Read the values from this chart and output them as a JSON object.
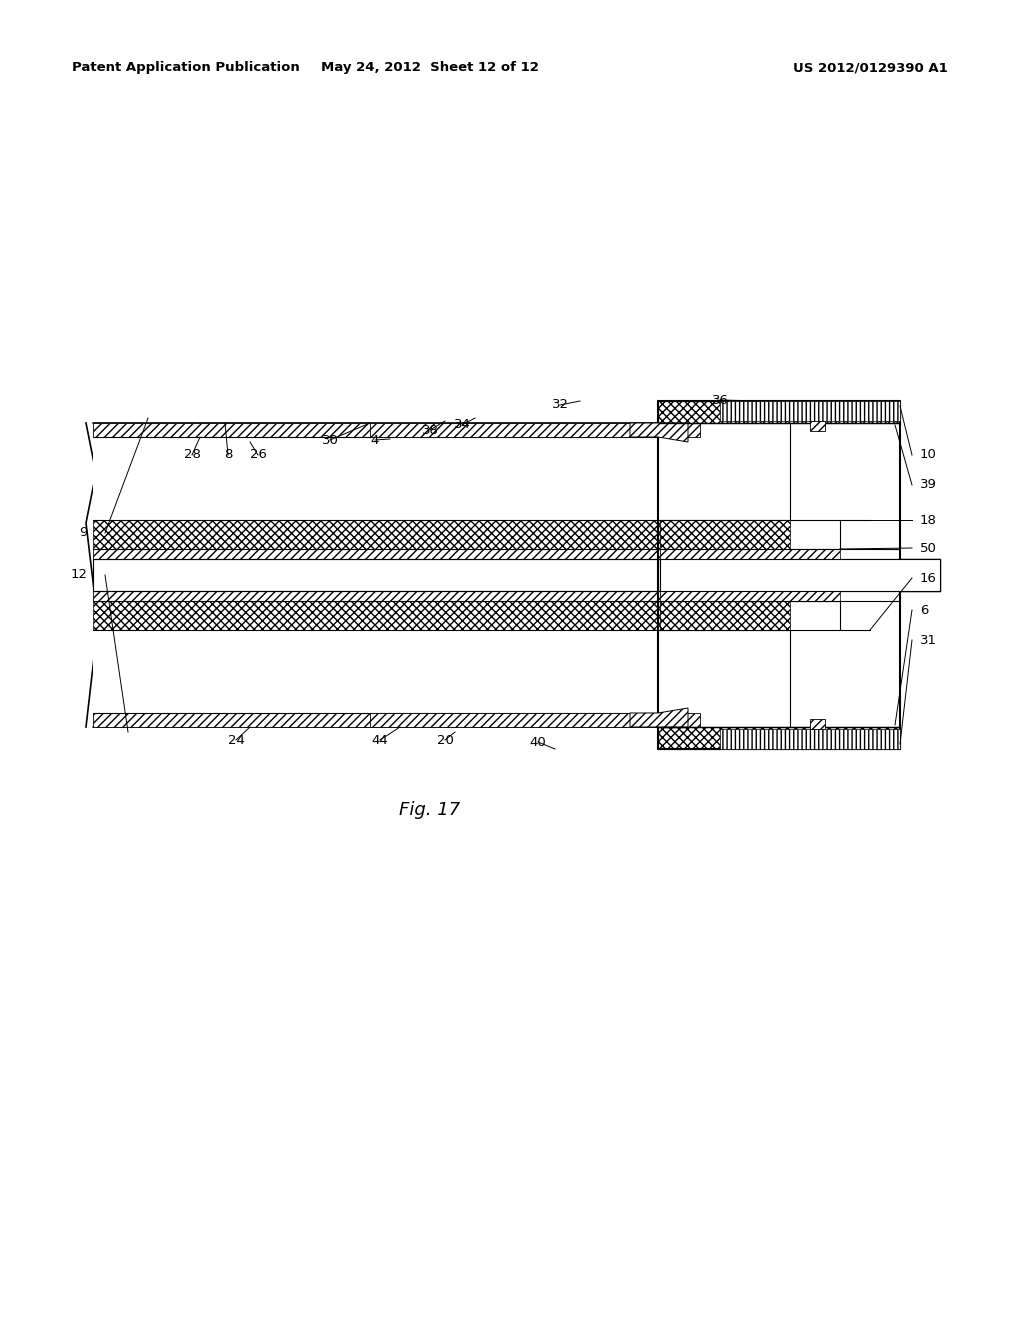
{
  "title": "Fig. 17",
  "header_left": "Patent Application Publication",
  "header_center": "May 24, 2012  Sheet 12 of 12",
  "header_right": "US 2012/0129390 A1",
  "bg_color": "#ffffff",
  "line_color": "#000000",
  "fig_caption": "Fig. 17"
}
